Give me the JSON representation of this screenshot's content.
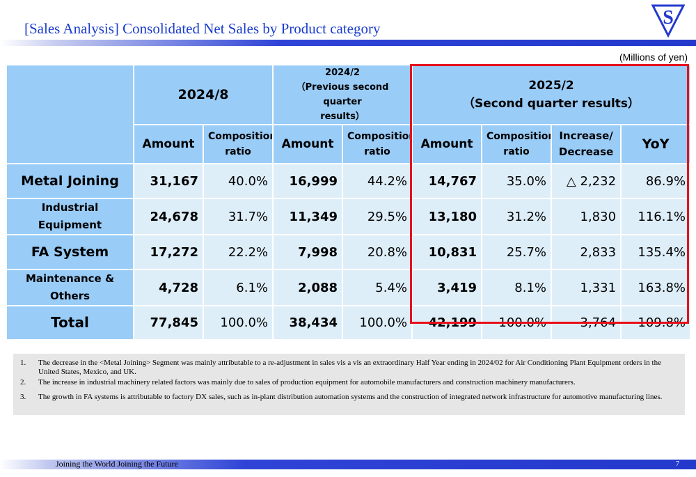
{
  "slide": {
    "title": "[Sales Analysis] Consolidated Net Sales by Product category",
    "unit_note": "(Millions of yen)",
    "logo_letter": "S",
    "footer_slogan": "Joining the World Joining the Future",
    "page_number": "7",
    "brand_color": "#2339cc",
    "highlight_color": "#e8101a"
  },
  "table": {
    "periods": {
      "p1": "2024/8",
      "p2_line1": "2024/2",
      "p2_line2": "（Previous second quarter",
      "p2_line3": "results）",
      "p3_line1": "2025/2",
      "p3_line2": "（Second quarter results）"
    },
    "columns": {
      "amount": "Amount",
      "comp_line1": "Composition",
      "comp_line2": "ratio",
      "inc_line1": "Increase/",
      "inc_line2": "Decrease",
      "yoy": "YoY"
    },
    "rows": [
      {
        "label1": "Metal Joining",
        "label2": "",
        "p1_amount": "31,167",
        "p1_ratio": "40.0%",
        "p2_amount": "16,999",
        "p2_ratio": "44.2%",
        "p3_amount": "14,767",
        "p3_ratio": "35.0%",
        "change": "△ 2,232",
        "yoy": "86.9%"
      },
      {
        "label1": "Industrial",
        "label2": "Equipment",
        "p1_amount": "24,678",
        "p1_ratio": "31.7%",
        "p2_amount": "11,349",
        "p2_ratio": "29.5%",
        "p3_amount": "13,180",
        "p3_ratio": "31.2%",
        "change": "1,830",
        "yoy": "116.1%"
      },
      {
        "label1": "FA System",
        "label2": "",
        "p1_amount": "17,272",
        "p1_ratio": "22.2%",
        "p2_amount": "7,998",
        "p2_ratio": "20.8%",
        "p3_amount": "10,831",
        "p3_ratio": "25.7%",
        "change": "2,833",
        "yoy": "135.4%"
      },
      {
        "label1": "Maintenance &",
        "label2": "Others",
        "p1_amount": "4,728",
        "p1_ratio": "6.1%",
        "p2_amount": "2,088",
        "p2_ratio": "5.4%",
        "p3_amount": "3,419",
        "p3_ratio": "8.1%",
        "change": "1,331",
        "yoy": "163.8%"
      },
      {
        "label1": "Total",
        "label2": "",
        "p1_amount": "77,845",
        "p1_ratio": "100.0%",
        "p2_amount": "38,434",
        "p2_ratio": "100.0%",
        "p3_amount": "42,199",
        "p3_ratio": "100.0%",
        "change": "3,764",
        "yoy": "109.8%"
      }
    ]
  },
  "notes": [
    {
      "num": "1.",
      "text": "The decrease in the <Metal Joining> Segment was mainly attributable to a re-adjustment in sales vis a vis an extraordinary Half Year ending in 2024/02 for Air Conditioning Plant Equipment orders in the United States, Mexico, and UK."
    },
    {
      "num": "2.",
      "text": "The increase in industrial machinery related factors was mainly due to sales of production equipment for automobile manufacturers and construction machinery manufacturers."
    },
    {
      "num": "3.",
      "text": "The growth in FA systems is attributable to factory DX sales, such as in-plant distribution automation systems and the construction of integrated network infrastructure for automotive manufacturing lines."
    }
  ]
}
